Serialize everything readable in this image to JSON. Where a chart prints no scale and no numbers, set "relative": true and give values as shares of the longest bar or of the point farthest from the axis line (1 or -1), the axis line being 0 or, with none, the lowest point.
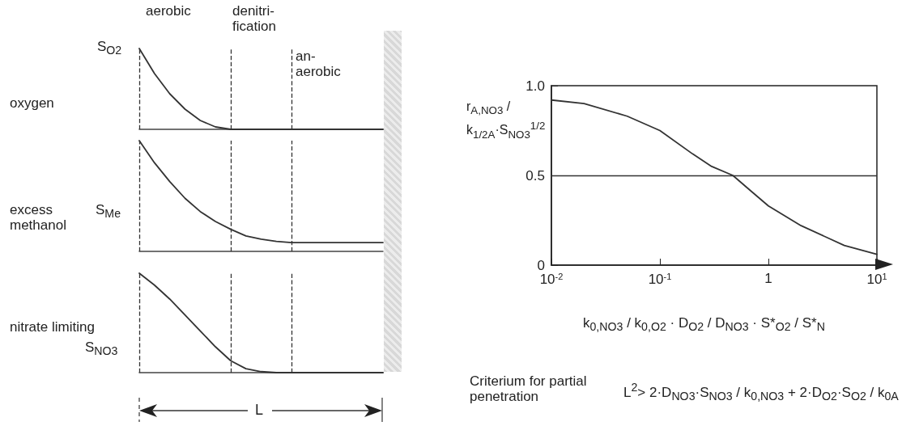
{
  "chart_data": [
    {
      "type": "line",
      "ylabel": "oxygen",
      "annotations": [
        "aerobic",
        "denitri-\nfication",
        "an-\naerobic",
        "S$_{O2}$"
      ],
      "categories": [
        null,
        null,
        null,
        null,
        null,
        null,
        null,
        null,
        null,
        null,
        null,
        null,
        null,
        null,
        null,
        null,
        null
      ],
      "relative": true,
      "marker": "none",
      "series": [
        {
          "color": "#333333",
          "values": [
            1,
            0.69,
            0.44,
            0.25,
            0.11,
            0.03,
            0,
            0,
            0,
            0,
            0,
            0,
            0,
            0,
            0,
            0,
            0
          ]
        }
      ]
    },
    {
      "type": "line",
      "ylabel": "excess methanol",
      "annotations": [
        "S$_{Me}$"
      ],
      "categories": [
        null,
        null,
        null,
        null,
        null,
        null,
        null,
        null,
        null,
        null,
        null,
        null,
        null,
        null,
        null,
        null,
        null
      ],
      "relative": true,
      "marker": "none",
      "series": [
        {
          "color": "#333333",
          "values": [
            1,
            0.8,
            0.63,
            0.48,
            0.36,
            0.27,
            0.2,
            0.14,
            0.11,
            0.09,
            0.08,
            0.08,
            0.08,
            0.08,
            0.08,
            0.08,
            0.08
          ]
        }
      ]
    },
    {
      "type": "line",
      "ylabel": "nitrate limiting",
      "xlabel": "L",
      "annotations": [
        "S$_{NO3}$"
      ],
      "categories": [
        null,
        null,
        null,
        null,
        null,
        null,
        null,
        null,
        null,
        null,
        null,
        null,
        null,
        null,
        null,
        null,
        null
      ],
      "relative": true,
      "marker": "none",
      "series": [
        {
          "color": "#333333",
          "values": [
            1,
            0.88,
            0.74,
            0.58,
            0.42,
            0.26,
            0.12,
            0.04,
            0.01,
            0,
            0,
            0,
            0,
            0,
            0,
            0,
            0
          ]
        }
      ]
    },
    {
      "type": "line",
      "ylabel": "r$_{A,NO3}$ / k$_{1/2A}$·S$_{NO3}$$^{1/2}$",
      "xlabel": "k$_{0,NO3}$ / k$_{0,O2}$ · D$_{O2}$ / D$_{NO3}$ · S*$_{O2}$ / S*$_{N}$",
      "annotations": [
        "Criterium for partial penetration",
        "L$^{2}$> 2·D$_{NO3}$·S$_{NO3}$ / k$_{0,NO3}$ + 2·D$_{O2}$·S$_{O2}$ / k$_{0A}$"
      ],
      "log": "x",
      "marker": "none",
      "line_style": "solid",
      "xlim": [
        0.01,
        10
      ],
      "ylim": [
        0,
        1
      ],
      "xticks": [
        {
          "value": 0.01,
          "label": "10$^{-2}$"
        },
        {
          "value": 0.1,
          "label": "10$^{-1}$"
        },
        1,
        {
          "value": 10,
          "label": "10$^{1}$"
        }
      ],
      "yticks": [
        0,
        0.5,
        {
          "value": 1,
          "label": "1.0"
        }
      ],
      "x": [
        0.01,
        0.02,
        0.05,
        0.1,
        0.2,
        0.3,
        0.47,
        0.7,
        1,
        2,
        5,
        10
      ],
      "series": [
        {
          "color": "#333333",
          "values": [
            0.92,
            0.9,
            0.83,
            0.75,
            0.62,
            0.55,
            0.5,
            0.41,
            0.33,
            0.22,
            0.11,
            0.06
          ]
        }
      ],
      "ref_lines": [
        {
          "axis": "y",
          "value": 0.5,
          "line_style": "solid"
        }
      ]
    }
  ]
}
